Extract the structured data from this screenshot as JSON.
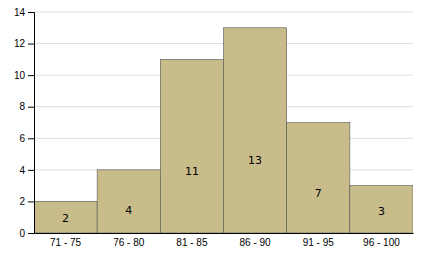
{
  "chart_data": {
    "type": "bar",
    "categories": [
      "71 - 75",
      "76 - 80",
      "81 - 85",
      "86 - 90",
      "91 - 95",
      "96 - 100"
    ],
    "values": [
      2,
      4,
      11,
      13,
      7,
      3
    ],
    "color": "#C8BC8A",
    "ylim": [
      0,
      14
    ],
    "yticks": [
      0,
      2,
      4,
      6,
      8,
      10,
      12,
      14
    ],
    "grid": true,
    "data_labels": true
  }
}
